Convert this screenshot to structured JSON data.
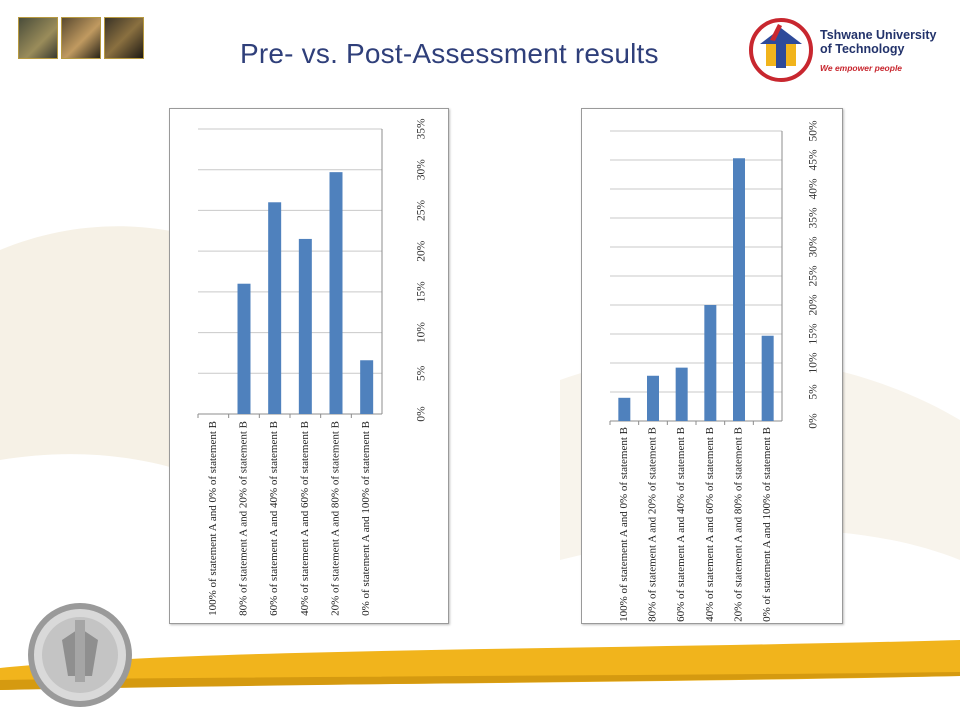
{
  "slide": {
    "title": "Pre- vs. Post-Assessment  results"
  },
  "logo": {
    "name_line1": "Tshwane University",
    "name_line2": "of Technology",
    "tagline": "We empower people"
  },
  "colors": {
    "bar": "#4f81bd",
    "title": "#2f3f7a",
    "logo_text": "#23336b",
    "logo_tagline": "#c8272f",
    "band": "#f1b41c"
  },
  "chart_data": [
    {
      "type": "bar",
      "categories": [
        "100% of statement A and 0% of statement B",
        "80% of statement A and 20% of statement B",
        "60% of statement A and 40% of statement B",
        "40% of statement A and 60% of statement B",
        "20% of statement A and 80% of statement B",
        "0% of statement A and 100% of statement B"
      ],
      "values": [
        0,
        16,
        26,
        21.5,
        29.7,
        6.6
      ],
      "ylim": [
        0,
        35
      ],
      "yticks": [
        "0%",
        "5%",
        "10%",
        "15%",
        "20%",
        "25%",
        "30%",
        "35%"
      ],
      "grid": true,
      "orientation": "rotated-90"
    },
    {
      "type": "bar",
      "categories": [
        "100% of statement A and 0% of statement B",
        "80% of statement A and 20% of statement B",
        "60% of statement A and 40% of statement B",
        "40% of statement A and 60% of statement B",
        "20% of statement A and 80% of statement B",
        "0% of statement A and 100% of statement B"
      ],
      "values": [
        4,
        7.8,
        9.2,
        20,
        45.3,
        14.7
      ],
      "ylim": [
        0,
        50
      ],
      "yticks": [
        "0%",
        "5%",
        "10%",
        "15%",
        "20%",
        "25%",
        "30%",
        "35%",
        "40%",
        "45%",
        "50%"
      ],
      "grid": true,
      "orientation": "rotated-90"
    }
  ]
}
